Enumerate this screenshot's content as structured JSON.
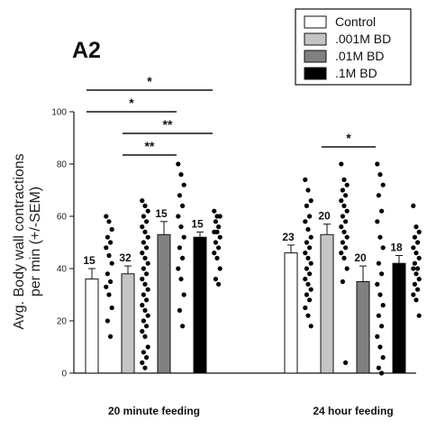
{
  "chart_data": {
    "type": "bar",
    "panel_label": "A2",
    "ylabel_line1": "Avg. Body wall contractions",
    "ylabel_line2": "per min (+/-SEM)",
    "ylim": [
      0,
      100
    ],
    "yticks": [
      0,
      20,
      40,
      60,
      80,
      100
    ],
    "groups": [
      "20 minute feeding",
      "24 hour feeding"
    ],
    "series": [
      {
        "name": "Control",
        "color": "#ffffff",
        "values": [
          36,
          46
        ],
        "sem": [
          4,
          3
        ],
        "n": [
          "15",
          "23"
        ],
        "points": [
          [
            60,
            58,
            55,
            52,
            50,
            48,
            45,
            42,
            38,
            35,
            33,
            30,
            25,
            20,
            14
          ],
          [
            74,
            70,
            66,
            64,
            60,
            58,
            55,
            52,
            50,
            48,
            46,
            44,
            42,
            40,
            38,
            36,
            34,
            32,
            30,
            28,
            25,
            22,
            18
          ]
        ]
      },
      {
        "name": ".001M BD",
        "color": "#c4c4c4",
        "values": [
          38,
          53
        ],
        "sem": [
          3,
          4
        ],
        "n": [
          "32",
          "20"
        ],
        "points": [
          [
            66,
            64,
            62,
            60,
            58,
            56,
            54,
            52,
            50,
            48,
            46,
            44,
            42,
            40,
            38,
            36,
            34,
            32,
            30,
            28,
            26,
            24,
            22,
            20,
            18,
            16,
            14,
            10,
            8,
            6,
            4,
            2
          ],
          [
            80,
            74,
            72,
            70,
            68,
            66,
            64,
            62,
            60,
            58,
            56,
            54,
            52,
            50,
            48,
            46,
            44,
            40,
            35,
            4
          ]
        ]
      },
      {
        "name": ".01M BD",
        "color": "#808080",
        "values": [
          53,
          35
        ],
        "sem": [
          5,
          6
        ],
        "n": [
          "15",
          "20"
        ],
        "points": [
          [
            80,
            76,
            72,
            68,
            64,
            60,
            56,
            52,
            48,
            44,
            40,
            36,
            30,
            24,
            18
          ],
          [
            80,
            76,
            72,
            68,
            62,
            58,
            52,
            48,
            42,
            38,
            34,
            30,
            26,
            22,
            18,
            14,
            10,
            6,
            2,
            0
          ]
        ]
      },
      {
        "name": ".1M BD",
        "color": "#000000",
        "values": [
          52,
          42
        ],
        "sem": [
          2,
          3
        ],
        "n": [
          "15",
          "18"
        ],
        "points": [
          [
            62,
            60,
            60,
            58,
            56,
            54,
            54,
            52,
            50,
            48,
            46,
            44,
            40,
            36,
            34
          ],
          [
            64,
            56,
            54,
            52,
            50,
            48,
            46,
            44,
            42,
            40,
            40,
            38,
            36,
            34,
            32,
            30,
            28,
            22
          ]
        ]
      }
    ],
    "significance": [
      {
        "from": [
          0,
          0
        ],
        "to": [
          0,
          3
        ],
        "label": "*"
      },
      {
        "from": [
          0,
          0
        ],
        "to": [
          0,
          2
        ],
        "label": "*"
      },
      {
        "from": [
          0,
          1
        ],
        "to": [
          0,
          3
        ],
        "label": "**"
      },
      {
        "from": [
          0,
          1
        ],
        "to": [
          0,
          2
        ],
        "label": "**"
      },
      {
        "from": [
          1,
          1
        ],
        "to": [
          1,
          2
        ],
        "label": "*"
      }
    ],
    "legend_position": "top-right",
    "grid": false
  }
}
